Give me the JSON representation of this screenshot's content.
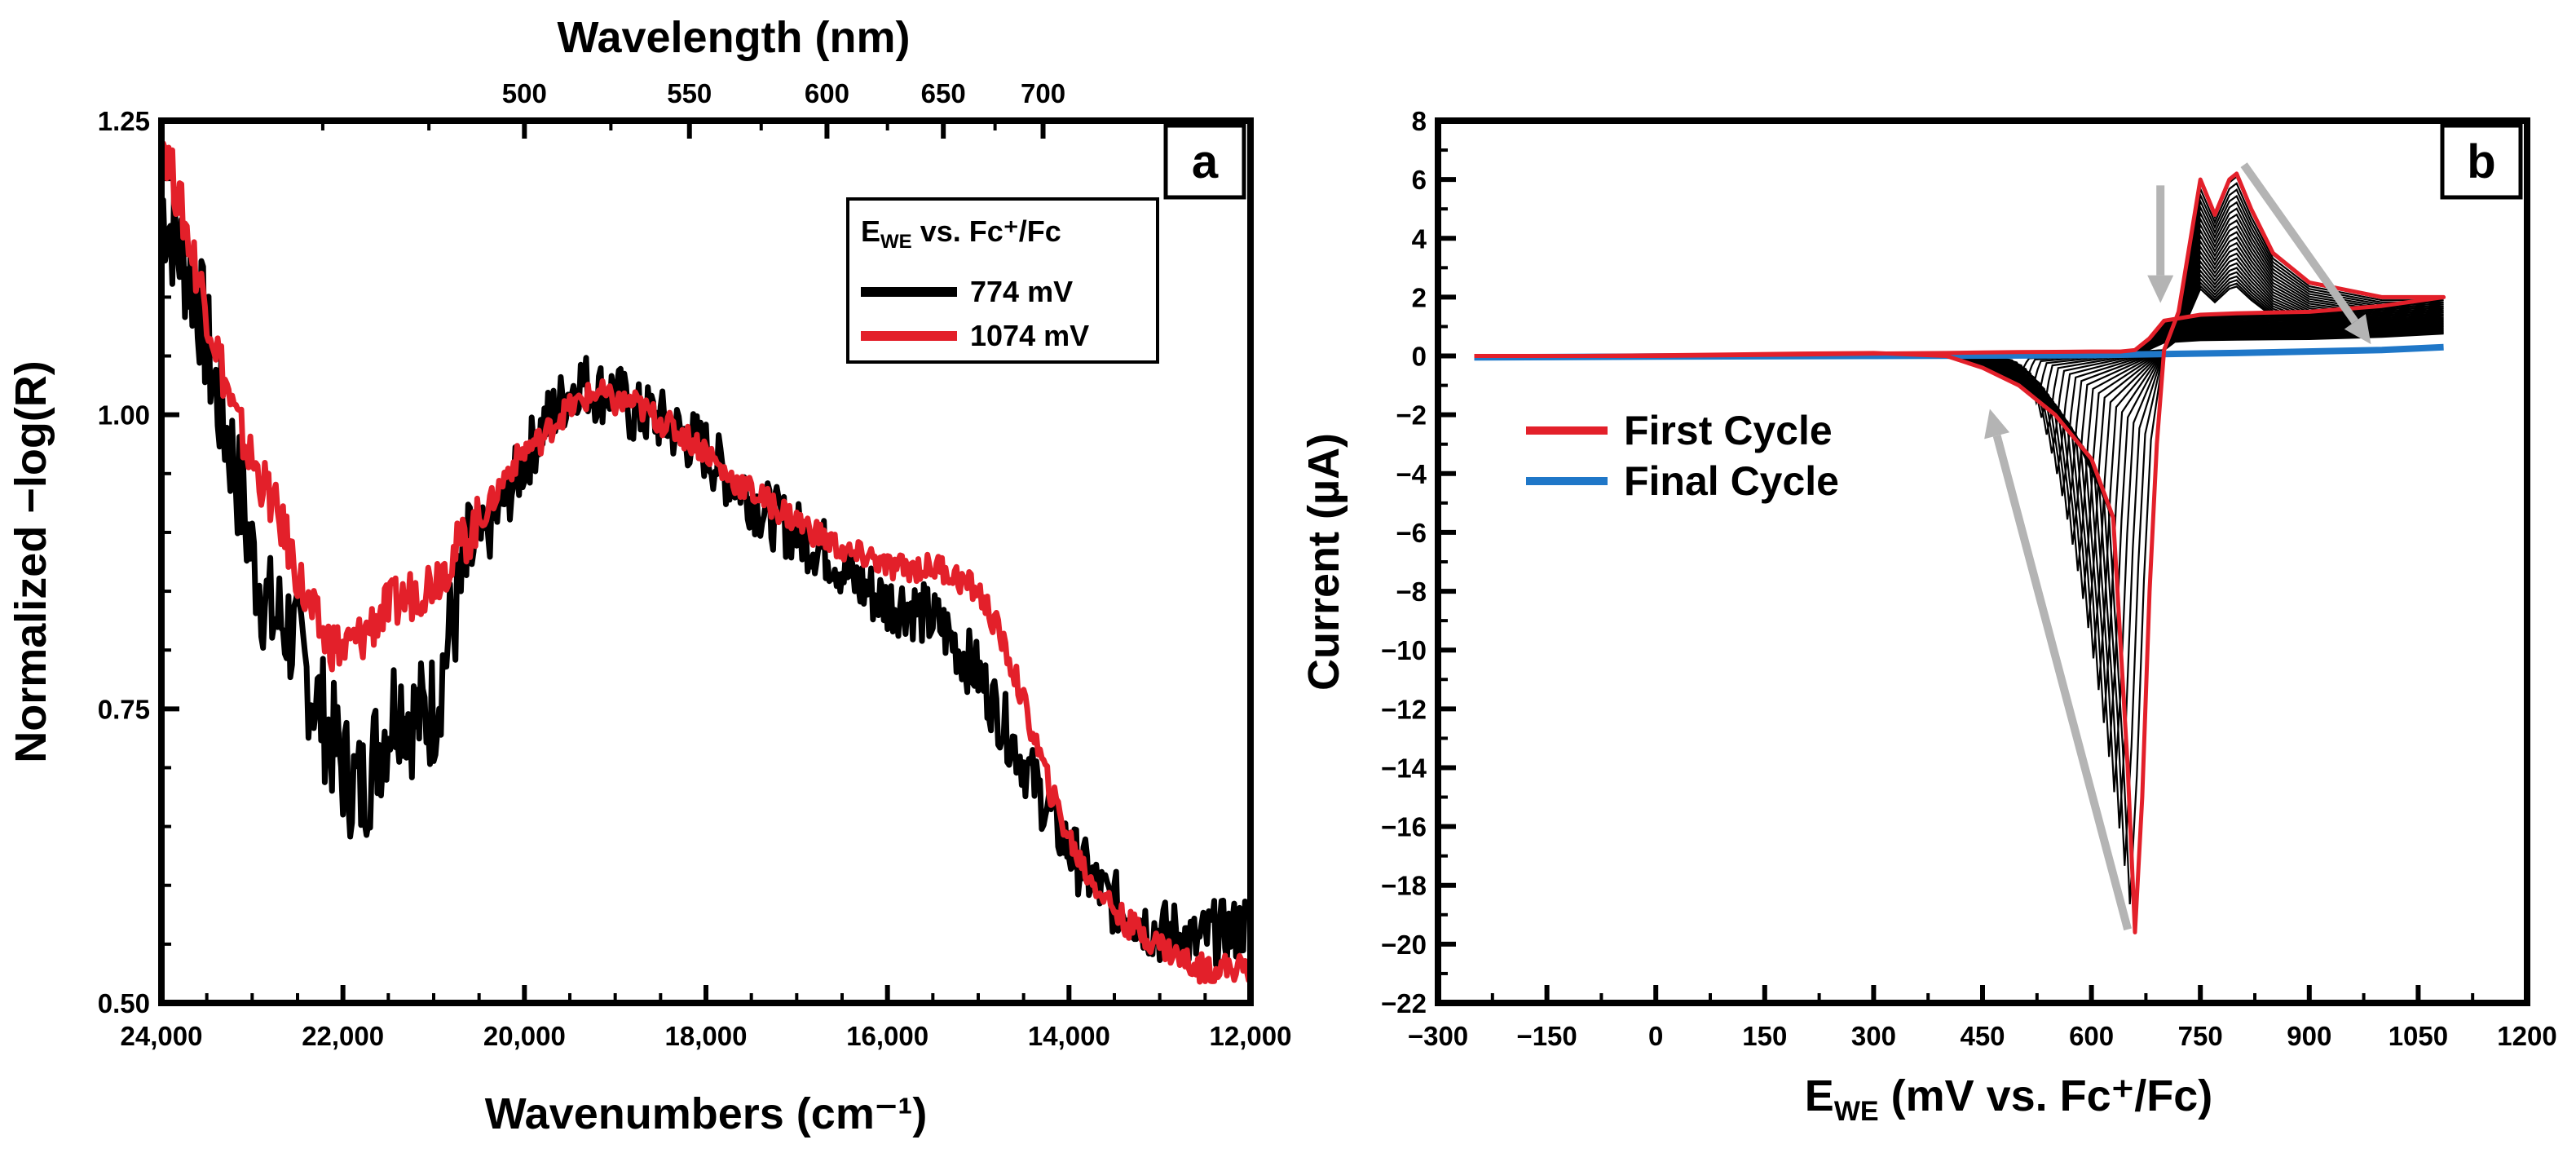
{
  "chart_data": [
    {
      "panel": "a",
      "type": "line",
      "xlabel": "Wavenumbers (cm⁻¹)",
      "x_top_label": "Wavelength (nm)",
      "ylabel": "Normalized −log(R)",
      "xlim": [
        24000,
        12000
      ],
      "ylim": [
        0.5,
        1.25
      ],
      "x_reversed": true,
      "xticks": [
        24000,
        22000,
        20000,
        18000,
        16000,
        14000,
        12000
      ],
      "xtick_labels": [
        "24,000",
        "22,000",
        "20,000",
        "18,000",
        "16,000",
        "14,000",
        "12,000"
      ],
      "yticks": [
        0.5,
        0.75,
        1.0,
        1.25
      ],
      "ytick_labels": [
        "0.50",
        "0.75",
        "1.00",
        "1.25"
      ],
      "top_ticks_nm": [
        500,
        550,
        600,
        650,
        700
      ],
      "top_tick_labels": [
        "500",
        "550",
        "600",
        "650",
        "700"
      ],
      "legend": {
        "position": "top-right",
        "title_main": "E",
        "title_sub": "WE",
        "title_rest": " vs. Fc⁺/Fc",
        "entries": [
          "774 mV",
          "1074 mV"
        ]
      },
      "series": [
        {
          "name": "774 mV",
          "color": "#000000",
          "x": [
            24000,
            23800,
            23600,
            23400,
            23200,
            23000,
            22800,
            22600,
            22400,
            22200,
            22000,
            21800,
            21600,
            21400,
            21200,
            21000,
            20800,
            20600,
            20400,
            20200,
            20000,
            19800,
            19600,
            19400,
            19200,
            19000,
            18800,
            18600,
            18400,
            18200,
            18000,
            17800,
            17600,
            17400,
            17200,
            17000,
            16800,
            16600,
            16400,
            16200,
            16000,
            15800,
            15600,
            15400,
            15200,
            15000,
            14800,
            14600,
            14400,
            14200,
            14000,
            13800,
            13600,
            13400,
            13200,
            13000,
            12800,
            12600,
            12400,
            12200,
            12000
          ],
          "y": [
            1.18,
            1.14,
            1.1,
            1.02,
            0.96,
            0.88,
            0.83,
            0.82,
            0.78,
            0.74,
            0.7,
            0.68,
            0.72,
            0.76,
            0.74,
            0.75,
            0.82,
            0.88,
            0.9,
            0.93,
            0.96,
            0.99,
            1.01,
            1.03,
            1.02,
            1.02,
            1.0,
            1.0,
            0.99,
            0.98,
            0.97,
            0.95,
            0.94,
            0.92,
            0.91,
            0.9,
            0.89,
            0.88,
            0.86,
            0.85,
            0.84,
            0.84,
            0.83,
            0.82,
            0.8,
            0.78,
            0.75,
            0.72,
            0.69,
            0.66,
            0.63,
            0.61,
            0.59,
            0.58,
            0.57,
            0.56,
            0.56,
            0.55,
            0.56,
            0.56,
            0.57
          ]
        },
        {
          "name": "1074 mV",
          "color": "#e3202a",
          "x": [
            24000,
            23800,
            23600,
            23400,
            23200,
            23000,
            22800,
            22600,
            22400,
            22200,
            22000,
            21800,
            21600,
            21400,
            21200,
            21000,
            20800,
            20600,
            20400,
            20200,
            20000,
            19800,
            19600,
            19400,
            19200,
            19000,
            18800,
            18600,
            18400,
            18200,
            18000,
            17800,
            17600,
            17400,
            17200,
            17000,
            16800,
            16600,
            16400,
            16200,
            16000,
            15800,
            15600,
            15400,
            15200,
            15000,
            14800,
            14600,
            14400,
            14200,
            14000,
            13800,
            13600,
            13400,
            13200,
            13000,
            12800,
            12600,
            12400,
            12200,
            12000
          ],
          "y": [
            1.24,
            1.18,
            1.12,
            1.06,
            1.0,
            0.96,
            0.93,
            0.89,
            0.84,
            0.81,
            0.8,
            0.81,
            0.83,
            0.84,
            0.85,
            0.86,
            0.88,
            0.9,
            0.92,
            0.95,
            0.97,
            0.98,
            1.0,
            1.01,
            1.02,
            1.01,
            1.01,
            1.0,
            0.99,
            0.98,
            0.97,
            0.95,
            0.94,
            0.93,
            0.92,
            0.91,
            0.9,
            0.89,
            0.88,
            0.88,
            0.87,
            0.87,
            0.87,
            0.87,
            0.86,
            0.85,
            0.82,
            0.78,
            0.73,
            0.68,
            0.64,
            0.61,
            0.59,
            0.57,
            0.56,
            0.55,
            0.54,
            0.53,
            0.53,
            0.53,
            0.53
          ]
        }
      ]
    },
    {
      "panel": "b",
      "type": "line",
      "xlabel_main": "E",
      "xlabel_sub": "WE",
      "xlabel_rest": " (mV vs. Fc⁺/Fc)",
      "ylabel": "Current (µA)",
      "xlim": [
        -300,
        1200
      ],
      "ylim": [
        -22,
        8
      ],
      "xticks": [
        -300,
        -150,
        0,
        150,
        300,
        450,
        600,
        750,
        900,
        1050,
        1200
      ],
      "xtick_labels": [
        "−300",
        "−150",
        "0",
        "150",
        "300",
        "450",
        "600",
        "750",
        "900",
        "1050",
        "1200"
      ],
      "yticks": [
        8,
        6,
        4,
        2,
        0,
        -2,
        -4,
        -6,
        -8,
        -10,
        -12,
        -14,
        -16,
        -18,
        -20,
        -22
      ],
      "ytick_labels": [
        "8",
        "6",
        "4",
        "2",
        "0",
        "−2",
        "−4",
        "−6",
        "−8",
        "−10",
        "−12",
        "−14",
        "−16",
        "−18",
        "−20",
        "−22"
      ],
      "legend": {
        "position": "middle-left",
        "entries": [
          "First Cycle",
          "Final Cycle"
        ]
      },
      "series": [
        {
          "name": "First Cycle",
          "color": "#e3202a",
          "x": [
            -250,
            -100,
            0,
            100,
            200,
            300,
            400,
            450,
            500,
            550,
            600,
            630,
            650,
            660,
            670,
            680,
            690,
            700,
            720,
            740,
            750,
            770,
            790,
            800,
            820,
            850,
            900,
            1000,
            1085,
            1000,
            900,
            800,
            750,
            700,
            680,
            660,
            640,
            600,
            550,
            500,
            450,
            400,
            300,
            200,
            0,
            -250
          ],
          "y": [
            0.0,
            0.0,
            0.02,
            0.05,
            0.08,
            0.1,
            0.0,
            -0.4,
            -1.0,
            -2.0,
            -3.5,
            -5.5,
            -14.0,
            -19.6,
            -15.0,
            -8.0,
            -3.0,
            0.2,
            1.5,
            4.5,
            6.0,
            4.8,
            6.0,
            6.2,
            5.0,
            3.5,
            2.5,
            2.0,
            2.0,
            1.7,
            1.5,
            1.45,
            1.4,
            1.2,
            0.6,
            0.2,
            0.15,
            0.15,
            0.14,
            0.13,
            0.12,
            0.1,
            0.08,
            0.05,
            0.0,
            0.0
          ]
        },
        {
          "name": "Final Cycle",
          "color": "#1f77c8",
          "x": [
            -250,
            0,
            300,
            600,
            800,
            1000,
            1085
          ],
          "y": [
            -0.05,
            -0.02,
            0.0,
            0.03,
            0.1,
            0.2,
            0.3
          ]
        }
      ],
      "intermediate_cycles": {
        "color": "#000000",
        "count": 22,
        "cathodic_peak_fraction_first_to_last": [
          1.0,
          0.02
        ],
        "anodic_peak_fraction_first_to_last": [
          1.0,
          0.03
        ]
      },
      "arrows": [
        {
          "color": "#b4b4b4",
          "from": [
            695,
            5.8
          ],
          "to": [
            695,
            1.8
          ]
        },
        {
          "color": "#b4b4b4",
          "from": [
            810,
            6.5
          ],
          "to": [
            985,
            0.4
          ]
        },
        {
          "color": "#b4b4b4",
          "from": [
            650,
            -19.5
          ],
          "to": [
            460,
            -1.8
          ]
        }
      ]
    }
  ]
}
